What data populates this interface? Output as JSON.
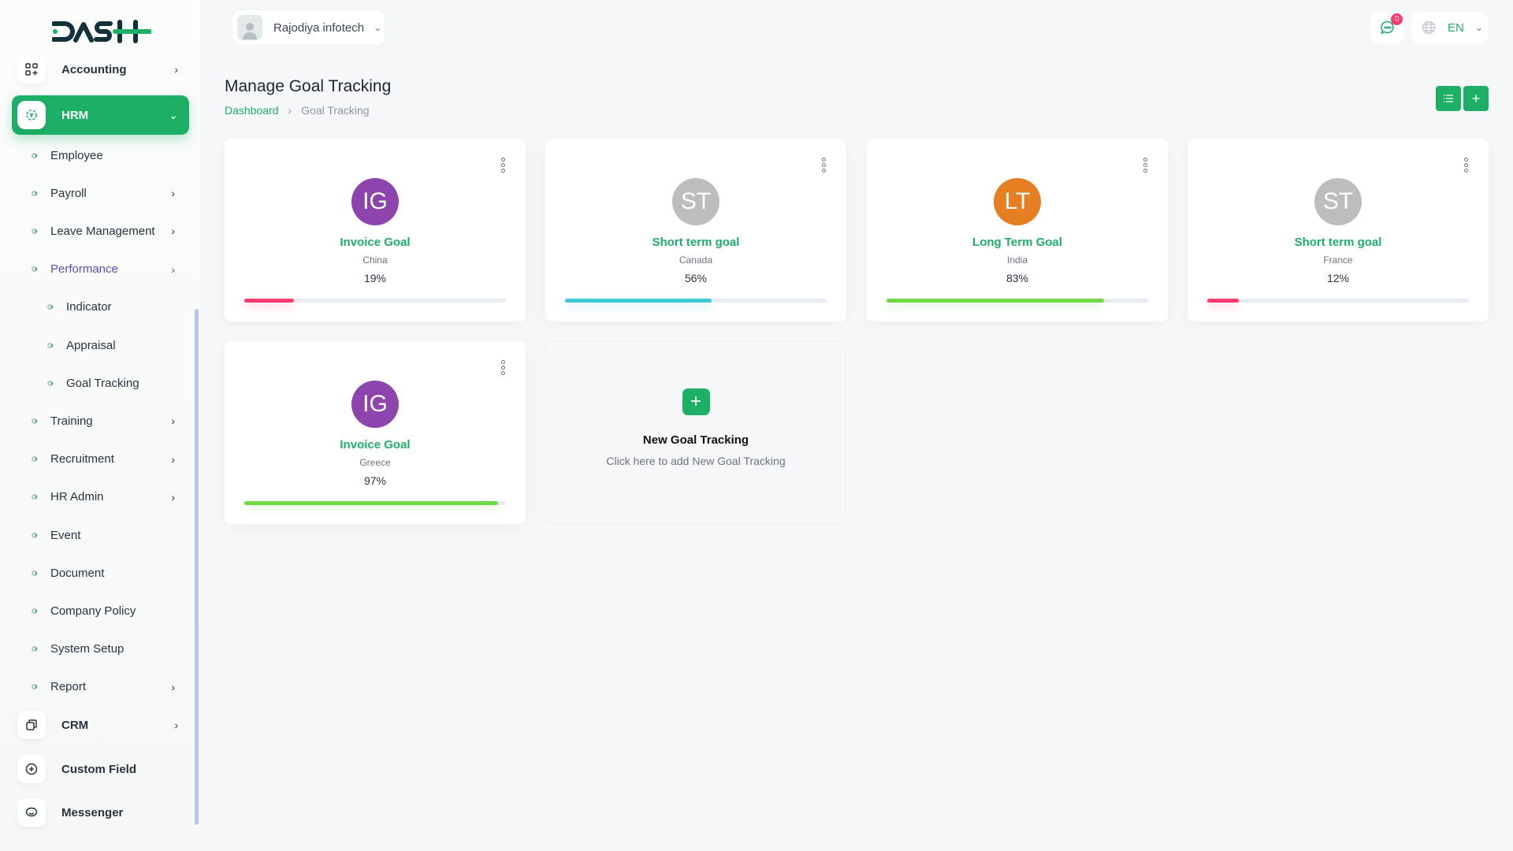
{
  "brand": {
    "logo_text": "DASH",
    "accent": "#1eaf67"
  },
  "sidebar": {
    "accounting": "Accounting",
    "hrm": "HRM",
    "items": [
      {
        "label": "Employee",
        "chevron": false
      },
      {
        "label": "Payroll",
        "chevron": true
      },
      {
        "label": "Leave Management",
        "chevron": true
      },
      {
        "label": "Performance",
        "chevron": true,
        "active": true
      },
      {
        "label": "Indicator",
        "sub": true
      },
      {
        "label": "Appraisal",
        "sub": true
      },
      {
        "label": "Goal Tracking",
        "sub": true
      },
      {
        "label": "Training",
        "chevron": true
      },
      {
        "label": "Recruitment",
        "chevron": true
      },
      {
        "label": "HR Admin",
        "chevron": true
      },
      {
        "label": "Event"
      },
      {
        "label": "Document"
      },
      {
        "label": "Company Policy"
      },
      {
        "label": "System Setup"
      },
      {
        "label": "Report",
        "chevron": true
      }
    ],
    "crm": "CRM",
    "custom_field": "Custom Field",
    "messenger": "Messenger"
  },
  "header": {
    "user": "Rajodiya infotech",
    "notifications": "0",
    "language": "EN"
  },
  "page": {
    "title": "Manage Goal Tracking",
    "breadcrumb": [
      "Dashboard",
      "Goal Tracking"
    ]
  },
  "goals": [
    {
      "initials": "IG",
      "name": "Invoice Goal",
      "country": "China",
      "percent": "19%",
      "progress": 19,
      "avatar_color": "#8e44ad",
      "bar_color": "#ff3a6e"
    },
    {
      "initials": "ST",
      "name": "Short term goal",
      "country": "Canada",
      "percent": "56%",
      "progress": 56,
      "avatar_color": "#bdbdbd",
      "bar_color": "#3ec9d6"
    },
    {
      "initials": "LT",
      "name": "Long Term Goal",
      "country": "India",
      "percent": "83%",
      "progress": 83,
      "avatar_color": "#e67e22",
      "bar_color": "#6fd943"
    },
    {
      "initials": "ST",
      "name": "Short term goal",
      "country": "France",
      "percent": "12%",
      "progress": 12,
      "avatar_color": "#bdbdbd",
      "bar_color": "#ff3a6e"
    },
    {
      "initials": "IG",
      "name": "Invoice Goal",
      "country": "Greece",
      "percent": "97%",
      "progress": 97,
      "avatar_color": "#8e44ad",
      "bar_color": "#6fd943"
    }
  ],
  "new_card": {
    "title": "New Goal Tracking",
    "subtitle": "Click here to add New Goal Tracking"
  }
}
